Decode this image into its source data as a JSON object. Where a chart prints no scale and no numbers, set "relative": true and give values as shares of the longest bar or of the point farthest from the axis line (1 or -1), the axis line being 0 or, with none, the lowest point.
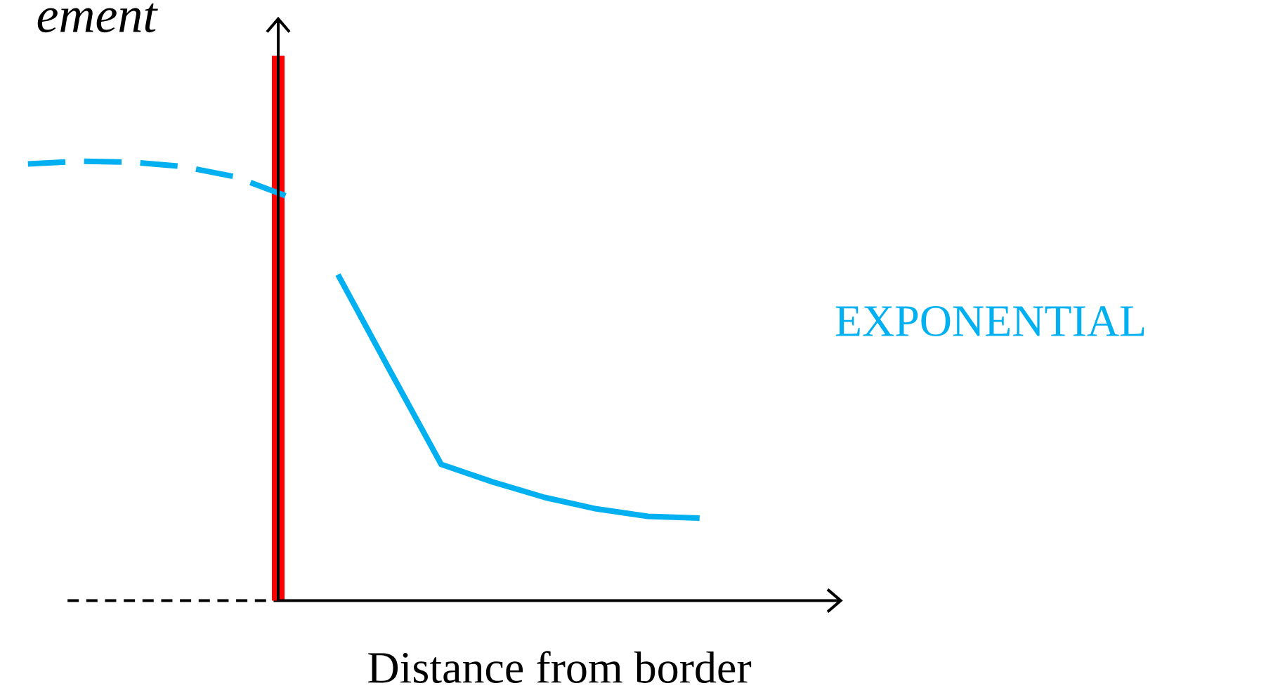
{
  "chart_data": {
    "type": "line",
    "relative": true,
    "xlabel": "Distance from border",
    "ylabel": "ement",
    "categories": [
      null,
      null,
      null,
      null,
      null,
      null,
      null,
      null,
      null,
      null,
      null,
      null,
      null,
      null
    ],
    "series": [
      {
        "color": "#00b0f0",
        "line_style": "dashed",
        "values": [
          0.994,
          1.0,
          0.998,
          0.988,
          0.965,
          0.921,
          null,
          null,
          null,
          null,
          null,
          null,
          null,
          null
        ]
      },
      {
        "name": "EXPONENTIAL",
        "color": "#00b0f0",
        "line_style": "solid",
        "values": [
          null,
          null,
          null,
          null,
          null,
          null,
          0.742,
          0.525,
          0.31,
          0.27,
          0.235,
          0.209,
          0.192,
          0.188
        ]
      }
    ]
  }
}
